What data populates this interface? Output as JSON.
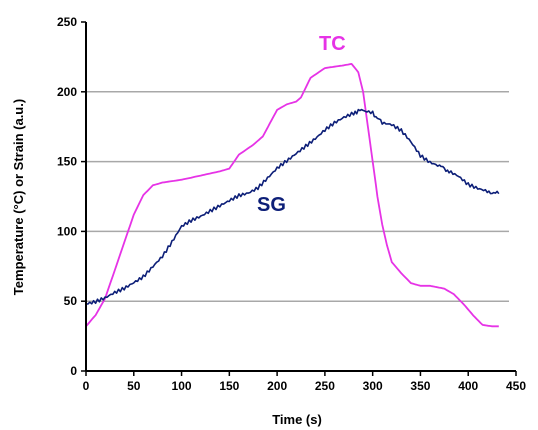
{
  "chart_data": {
    "type": "line",
    "title": "",
    "xlabel": "Time (s)",
    "ylabel": "Temperature (°C) or Strain (a.u.)",
    "xlim": [
      0,
      450
    ],
    "ylim": [
      0,
      250
    ],
    "xticks": [
      "0",
      "50",
      "100",
      "150",
      "200",
      "250",
      "300",
      "350",
      "400",
      "450"
    ],
    "yticks": [
      "0",
      "50",
      "100",
      "150",
      "200",
      "250"
    ],
    "gridlines_y": [
      50,
      100,
      150,
      200
    ],
    "grid": "horizontal",
    "legend": "none",
    "series": [
      {
        "name": "TC",
        "color": "#e633e6",
        "x": [
          0,
          10,
          20,
          30,
          40,
          50,
          60,
          70,
          80,
          100,
          120,
          140,
          150,
          160,
          175,
          185,
          200,
          210,
          220,
          225,
          235,
          250,
          260,
          270,
          278,
          285,
          290,
          295,
          300,
          305,
          310,
          315,
          320,
          330,
          340,
          350,
          360,
          375,
          385,
          395,
          405,
          415,
          425,
          432
        ],
        "values": [
          32,
          40,
          52,
          72,
          92,
          112,
          126,
          133,
          135,
          137,
          140,
          143,
          145,
          155,
          162,
          168,
          187,
          191,
          193,
          196,
          210,
          217,
          218,
          219,
          220,
          214,
          200,
          175,
          150,
          125,
          105,
          90,
          78,
          70,
          63,
          61,
          61,
          59,
          55,
          48,
          40,
          33,
          32,
          32
        ]
      },
      {
        "name": "SG",
        "color": "#0d1f78",
        "x": [
          0,
          10,
          20,
          30,
          40,
          50,
          60,
          70,
          80,
          90,
          100,
          110,
          120,
          130,
          140,
          150,
          160,
          170,
          180,
          190,
          200,
          210,
          220,
          230,
          240,
          250,
          260,
          270,
          280,
          285,
          290,
          300,
          305,
          310,
          320,
          330,
          340,
          350,
          360,
          370,
          375,
          380,
          390,
          400,
          410,
          420,
          425,
          432
        ],
        "values": [
          48,
          50,
          53,
          57,
          60,
          64,
          68,
          75,
          82,
          92,
          103,
          107,
          110,
          114,
          118,
          122,
          126,
          128,
          132,
          139,
          146,
          151,
          156,
          161,
          166,
          172,
          177,
          181,
          184,
          187,
          186,
          185,
          181,
          178,
          177,
          173,
          165,
          155,
          150,
          147,
          145,
          143,
          139,
          133,
          130,
          128,
          128,
          127
        ]
      }
    ]
  }
}
